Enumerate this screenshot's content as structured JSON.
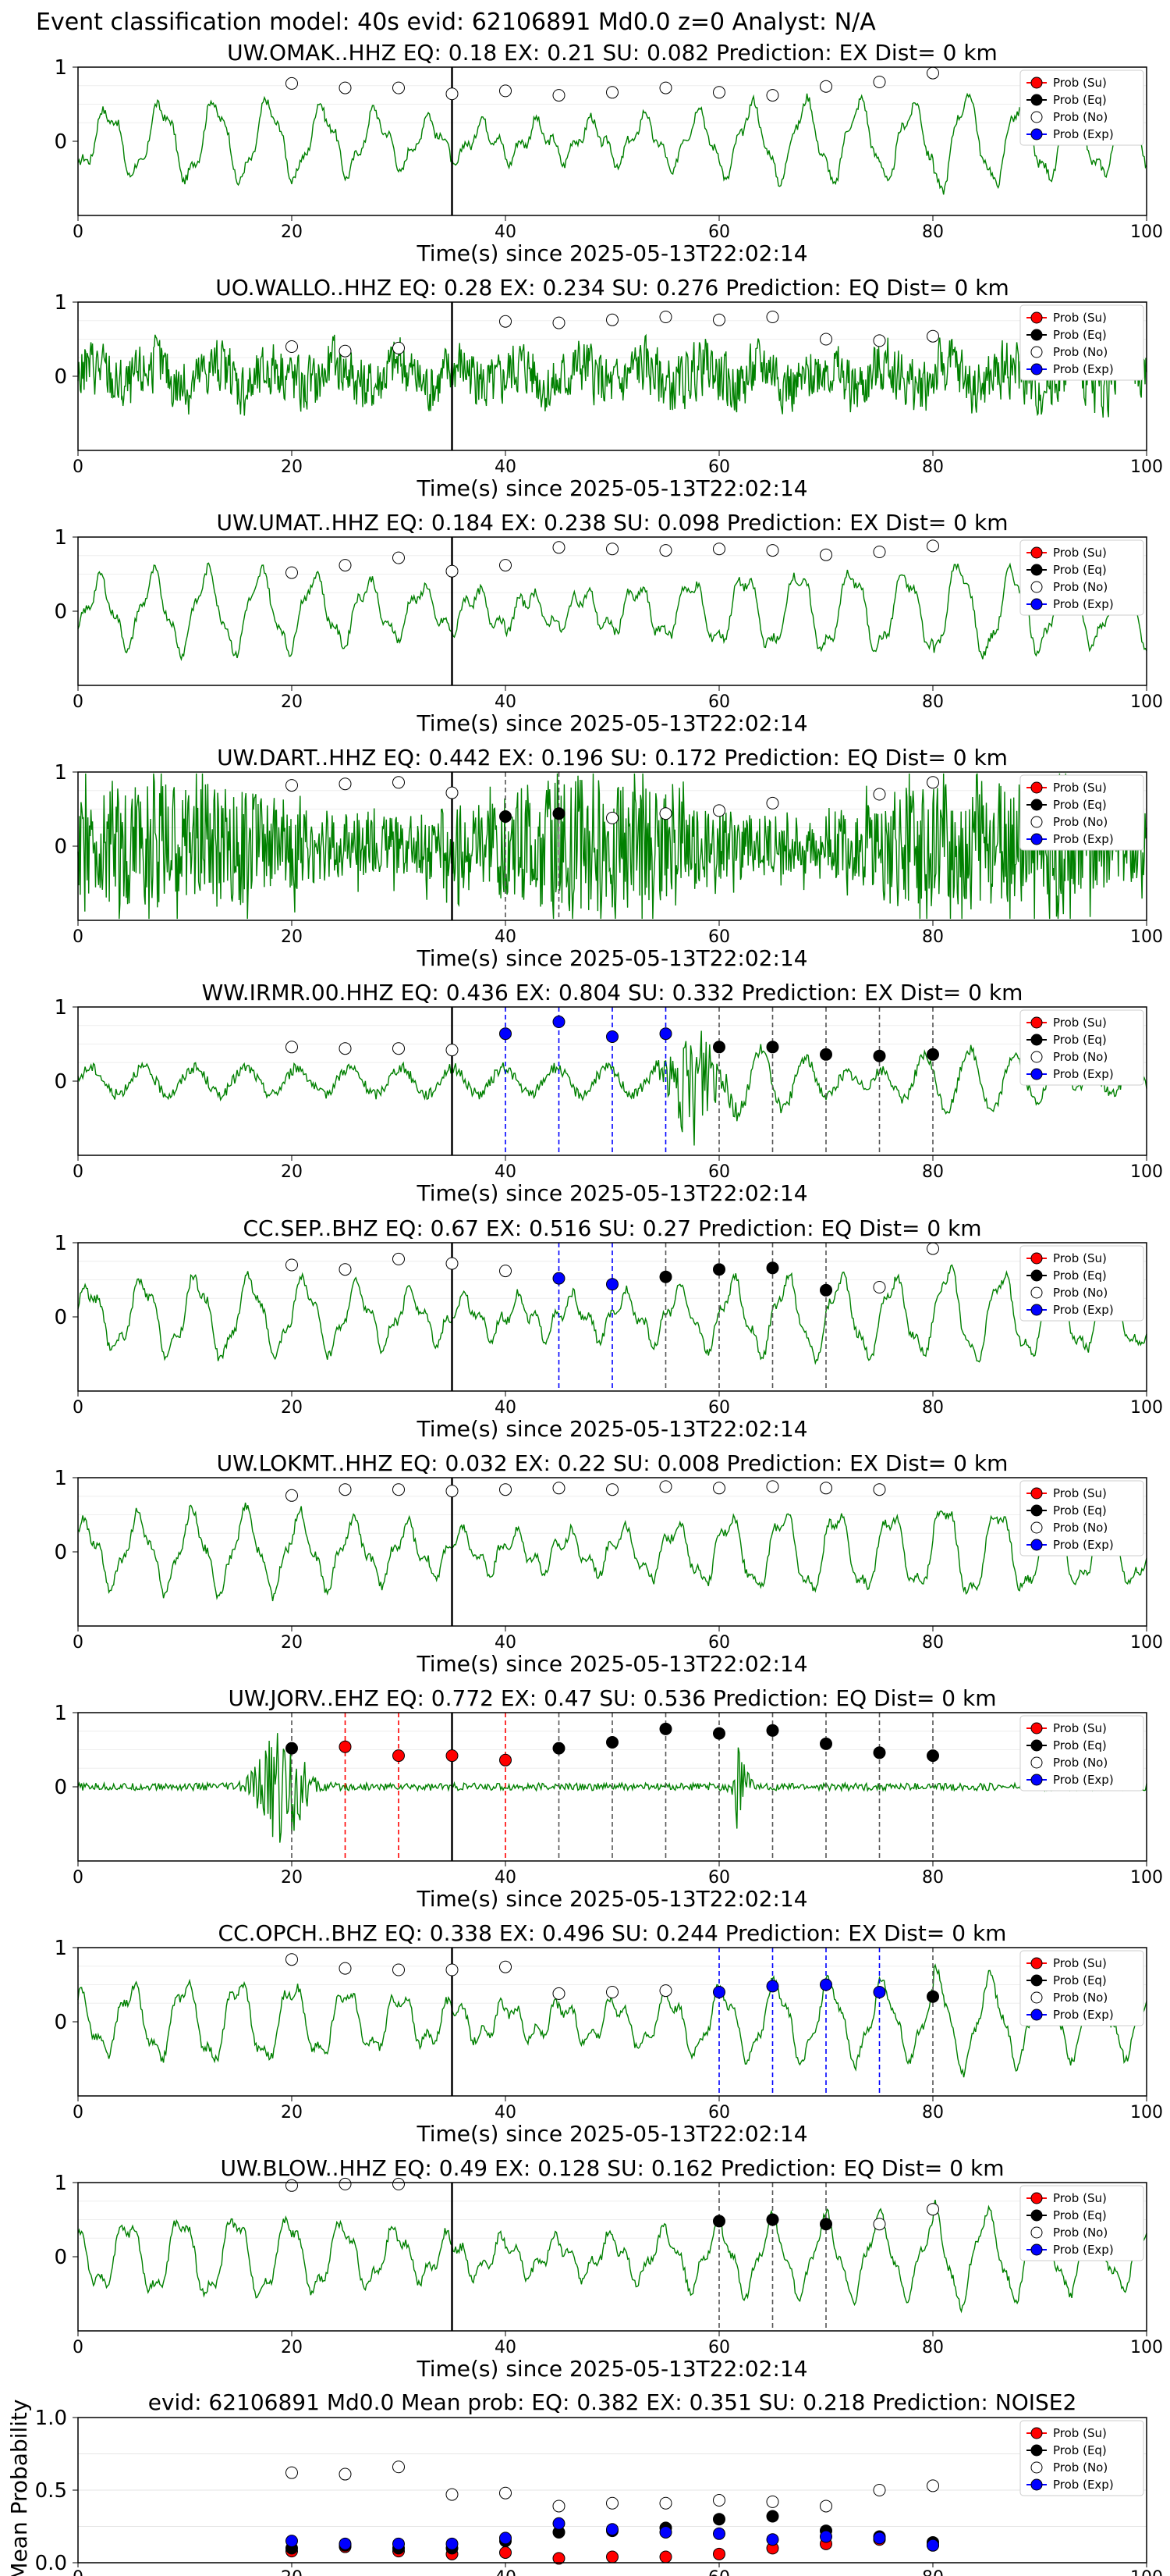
{
  "figure_title": "Event classification model: 40s evid: 62106891 Md0.0 z=0 Analyst: N/A",
  "colors": {
    "waveform": "#008000",
    "su": "#ff0000",
    "eq": "#000000",
    "no": "#ffffff",
    "exp": "#0000ff",
    "origin_line": "#000000"
  },
  "legend_labels": [
    "Prob (Su)",
    "Prob (Eq)",
    "Prob (No)",
    "Prob (Exp)"
  ],
  "chart_data": [
    {
      "type": "line",
      "title": "UW.OMAK..HHZ   EQ: 0.18   EX: 0.21   SU: 0.082   Prediction: EX    Dist= 0 km",
      "xlabel": "Time(s) since 2025-05-13T22:02:14",
      "xlim": [
        0,
        100
      ],
      "ylim": [
        -1,
        1
      ],
      "xticks": [
        0,
        20,
        40,
        60,
        80,
        100
      ],
      "yticks": [
        0,
        1
      ],
      "origin_time": 35,
      "legend": "top-right",
      "points": [
        [
          20,
          0.78,
          "no"
        ],
        [
          25,
          0.72,
          "no"
        ],
        [
          30,
          0.72,
          "no"
        ],
        [
          35,
          0.64,
          "no"
        ],
        [
          40,
          0.68,
          "no"
        ],
        [
          45,
          0.62,
          "no"
        ],
        [
          50,
          0.66,
          "no"
        ],
        [
          55,
          0.72,
          "no"
        ],
        [
          60,
          0.66,
          "no"
        ],
        [
          65,
          0.62,
          "no"
        ],
        [
          70,
          0.74,
          "no"
        ],
        [
          75,
          0.8,
          "no"
        ],
        [
          80,
          0.92,
          "no"
        ]
      ],
      "dashed": [],
      "signal": "smooth"
    },
    {
      "type": "line",
      "title": "UO.WALLO..HHZ   EQ: 0.28   EX: 0.234   SU: 0.276   Prediction: EQ    Dist= 0 km",
      "xlabel": "Time(s) since 2025-05-13T22:02:14",
      "xlim": [
        0,
        100
      ],
      "ylim": [
        -1,
        1
      ],
      "xticks": [
        0,
        20,
        40,
        60,
        80,
        100
      ],
      "yticks": [
        0,
        1
      ],
      "origin_time": 35,
      "legend": "top-right",
      "points": [
        [
          20,
          0.4,
          "no"
        ],
        [
          25,
          0.34,
          "no"
        ],
        [
          30,
          0.38,
          "no"
        ],
        [
          40,
          0.74,
          "no"
        ],
        [
          45,
          0.72,
          "no"
        ],
        [
          50,
          0.76,
          "no"
        ],
        [
          55,
          0.8,
          "no"
        ],
        [
          60,
          0.76,
          "no"
        ],
        [
          65,
          0.8,
          "no"
        ],
        [
          70,
          0.5,
          "no"
        ],
        [
          75,
          0.48,
          "no"
        ],
        [
          80,
          0.54,
          "no"
        ]
      ],
      "dashed": [],
      "signal": "noisy"
    },
    {
      "type": "line",
      "title": "UW.UMAT..HHZ   EQ: 0.184   EX: 0.238   SU: 0.098   Prediction: EX    Dist= 0 km",
      "xlabel": "Time(s) since 2025-05-13T22:02:14",
      "xlim": [
        0,
        100
      ],
      "ylim": [
        -1,
        1
      ],
      "xticks": [
        0,
        20,
        40,
        60,
        80,
        100
      ],
      "yticks": [
        0,
        1
      ],
      "origin_time": 35,
      "legend": "top-right",
      "points": [
        [
          20,
          0.52,
          "no"
        ],
        [
          25,
          0.62,
          "no"
        ],
        [
          30,
          0.72,
          "no"
        ],
        [
          35,
          0.54,
          "no"
        ],
        [
          40,
          0.62,
          "no"
        ],
        [
          45,
          0.86,
          "no"
        ],
        [
          50,
          0.84,
          "no"
        ],
        [
          55,
          0.82,
          "no"
        ],
        [
          60,
          0.84,
          "no"
        ],
        [
          65,
          0.82,
          "no"
        ],
        [
          70,
          0.76,
          "no"
        ],
        [
          75,
          0.8,
          "no"
        ],
        [
          80,
          0.88,
          "no"
        ]
      ],
      "dashed": [],
      "signal": "smooth"
    },
    {
      "type": "line",
      "title": "UW.DART..HHZ   EQ: 0.442   EX: 0.196   SU: 0.172   Prediction: EQ    Dist= 0 km",
      "xlabel": "Time(s) since 2025-05-13T22:02:14",
      "xlim": [
        0,
        100
      ],
      "ylim": [
        -1,
        1
      ],
      "xticks": [
        0,
        20,
        40,
        60,
        80,
        100
      ],
      "yticks": [
        0,
        1
      ],
      "origin_time": 35,
      "legend": "top-right",
      "points": [
        [
          20,
          0.82,
          "no"
        ],
        [
          25,
          0.84,
          "no"
        ],
        [
          30,
          0.86,
          "no"
        ],
        [
          35,
          0.72,
          "no"
        ],
        [
          40,
          0.4,
          "eq"
        ],
        [
          45,
          0.44,
          "eq"
        ],
        [
          50,
          0.38,
          "no"
        ],
        [
          55,
          0.44,
          "no"
        ],
        [
          60,
          0.48,
          "no"
        ],
        [
          65,
          0.58,
          "no"
        ],
        [
          75,
          0.7,
          "no"
        ],
        [
          80,
          0.86,
          "no"
        ]
      ],
      "dashed": [
        [
          40,
          "eq"
        ],
        [
          45,
          "eq"
        ]
      ],
      "signal": "dense"
    },
    {
      "type": "line",
      "title": "WW.IRMR.00.HHZ   EQ: 0.436   EX: 0.804   SU: 0.332   Prediction: EX    Dist= 0 km",
      "xlabel": "Time(s) since 2025-05-13T22:02:14",
      "xlim": [
        0,
        100
      ],
      "ylim": [
        -1,
        1
      ],
      "xticks": [
        0,
        20,
        40,
        60,
        80,
        100
      ],
      "yticks": [
        0,
        1
      ],
      "origin_time": 35,
      "legend": "top-right",
      "points": [
        [
          20,
          0.46,
          "no"
        ],
        [
          25,
          0.44,
          "no"
        ],
        [
          30,
          0.44,
          "no"
        ],
        [
          35,
          0.42,
          "no"
        ],
        [
          40,
          0.64,
          "exp"
        ],
        [
          45,
          0.8,
          "exp"
        ],
        [
          50,
          0.6,
          "exp"
        ],
        [
          55,
          0.64,
          "exp"
        ],
        [
          60,
          0.46,
          "eq"
        ],
        [
          65,
          0.46,
          "eq"
        ],
        [
          70,
          0.36,
          "eq"
        ],
        [
          75,
          0.34,
          "eq"
        ],
        [
          80,
          0.36,
          "eq"
        ]
      ],
      "dashed": [
        [
          40,
          "exp"
        ],
        [
          45,
          "exp"
        ],
        [
          50,
          "exp"
        ],
        [
          55,
          "exp"
        ],
        [
          60,
          "eq"
        ],
        [
          65,
          "eq"
        ],
        [
          70,
          "eq"
        ],
        [
          75,
          "eq"
        ],
        [
          80,
          "eq"
        ]
      ],
      "signal": "burst"
    },
    {
      "type": "line",
      "title": "CC.SEP..BHZ   EQ: 0.67   EX: 0.516   SU: 0.27   Prediction: EQ    Dist= 0 km",
      "xlabel": "Time(s) since 2025-05-13T22:02:14",
      "xlim": [
        0,
        100
      ],
      "ylim": [
        -1,
        1
      ],
      "xticks": [
        0,
        20,
        40,
        60,
        80,
        100
      ],
      "yticks": [
        0,
        1
      ],
      "origin_time": 35,
      "legend": "top-right",
      "points": [
        [
          20,
          0.7,
          "no"
        ],
        [
          25,
          0.64,
          "no"
        ],
        [
          30,
          0.78,
          "no"
        ],
        [
          35,
          0.72,
          "no"
        ],
        [
          40,
          0.62,
          "no"
        ],
        [
          45,
          0.52,
          "exp"
        ],
        [
          50,
          0.44,
          "exp"
        ],
        [
          55,
          0.54,
          "eq"
        ],
        [
          60,
          0.64,
          "eq"
        ],
        [
          65,
          0.66,
          "eq"
        ],
        [
          70,
          0.36,
          "eq"
        ],
        [
          75,
          0.4,
          "no"
        ],
        [
          80,
          0.92,
          "no"
        ]
      ],
      "dashed": [
        [
          45,
          "exp"
        ],
        [
          50,
          "exp"
        ],
        [
          55,
          "eq"
        ],
        [
          60,
          "eq"
        ],
        [
          65,
          "eq"
        ],
        [
          70,
          "eq"
        ]
      ],
      "signal": "smooth"
    },
    {
      "type": "line",
      "title": "UW.LOKMT..HHZ   EQ: 0.032   EX: 0.22   SU: 0.008   Prediction: EX    Dist= 0 km",
      "xlabel": "Time(s) since 2025-05-13T22:02:14",
      "xlim": [
        0,
        100
      ],
      "ylim": [
        -1,
        1
      ],
      "xticks": [
        0,
        20,
        40,
        60,
        80,
        100
      ],
      "yticks": [
        0,
        1
      ],
      "origin_time": 35,
      "legend": "top-right",
      "points": [
        [
          20,
          0.76,
          "no"
        ],
        [
          25,
          0.84,
          "no"
        ],
        [
          30,
          0.84,
          "no"
        ],
        [
          35,
          0.82,
          "no"
        ],
        [
          40,
          0.84,
          "no"
        ],
        [
          45,
          0.86,
          "no"
        ],
        [
          50,
          0.84,
          "no"
        ],
        [
          55,
          0.88,
          "no"
        ],
        [
          60,
          0.86,
          "no"
        ],
        [
          65,
          0.88,
          "no"
        ],
        [
          70,
          0.86,
          "no"
        ],
        [
          75,
          0.84,
          "no"
        ]
      ],
      "dashed": [],
      "signal": "smooth"
    },
    {
      "type": "line",
      "title": "UW.JORV..EHZ   EQ: 0.772   EX: 0.47   SU: 0.536   Prediction: EQ    Dist= 0 km",
      "xlabel": "Time(s) since 2025-05-13T22:02:14",
      "xlim": [
        0,
        100
      ],
      "ylim": [
        -1,
        1
      ],
      "xticks": [
        0,
        20,
        40,
        60,
        80,
        100
      ],
      "yticks": [
        0,
        1
      ],
      "origin_time": 35,
      "legend": "top-right",
      "points": [
        [
          20,
          0.52,
          "eq"
        ],
        [
          25,
          0.54,
          "su"
        ],
        [
          30,
          0.42,
          "su"
        ],
        [
          35,
          0.42,
          "su"
        ],
        [
          40,
          0.36,
          "su"
        ],
        [
          45,
          0.52,
          "eq"
        ],
        [
          50,
          0.6,
          "eq"
        ],
        [
          55,
          0.78,
          "eq"
        ],
        [
          60,
          0.72,
          "eq"
        ],
        [
          65,
          0.76,
          "eq"
        ],
        [
          70,
          0.58,
          "eq"
        ],
        [
          75,
          0.46,
          "eq"
        ],
        [
          80,
          0.42,
          "eq"
        ]
      ],
      "dashed": [
        [
          20,
          "eq"
        ],
        [
          25,
          "su"
        ],
        [
          30,
          "su"
        ],
        [
          40,
          "su"
        ],
        [
          45,
          "eq"
        ],
        [
          50,
          "eq"
        ],
        [
          55,
          "eq"
        ],
        [
          60,
          "eq"
        ],
        [
          65,
          "eq"
        ],
        [
          70,
          "eq"
        ],
        [
          75,
          "eq"
        ],
        [
          80,
          "eq"
        ]
      ],
      "signal": "quake"
    },
    {
      "type": "line",
      "title": "CC.OPCH..BHZ   EQ: 0.338   EX: 0.496   SU: 0.244   Prediction: EX    Dist= 0 km",
      "xlabel": "Time(s) since 2025-05-13T22:02:14",
      "xlim": [
        0,
        100
      ],
      "ylim": [
        -1,
        1
      ],
      "xticks": [
        0,
        20,
        40,
        60,
        80,
        100
      ],
      "yticks": [
        0,
        1
      ],
      "origin_time": 35,
      "legend": "top-right",
      "points": [
        [
          20,
          0.84,
          "no"
        ],
        [
          25,
          0.72,
          "no"
        ],
        [
          30,
          0.7,
          "no"
        ],
        [
          35,
          0.7,
          "no"
        ],
        [
          40,
          0.74,
          "no"
        ],
        [
          45,
          0.38,
          "no"
        ],
        [
          50,
          0.4,
          "no"
        ],
        [
          55,
          0.42,
          "no"
        ],
        [
          60,
          0.4,
          "exp"
        ],
        [
          65,
          0.48,
          "exp"
        ],
        [
          70,
          0.5,
          "exp"
        ],
        [
          75,
          0.4,
          "exp"
        ],
        [
          80,
          0.34,
          "eq"
        ]
      ],
      "dashed": [
        [
          60,
          "exp"
        ],
        [
          65,
          "exp"
        ],
        [
          70,
          "exp"
        ],
        [
          75,
          "exp"
        ],
        [
          80,
          "eq"
        ]
      ],
      "signal": "smooth"
    },
    {
      "type": "line",
      "title": "UW.BLOW..HHZ   EQ: 0.49   EX: 0.128   SU: 0.162   Prediction: EQ    Dist= 0 km",
      "xlabel": "Time(s) since 2025-05-13T22:02:14",
      "xlim": [
        0,
        100
      ],
      "ylim": [
        -1,
        1
      ],
      "xticks": [
        0,
        20,
        40,
        60,
        80,
        100
      ],
      "yticks": [
        0,
        1
      ],
      "origin_time": 35,
      "legend": "top-right",
      "points": [
        [
          20,
          0.96,
          "no"
        ],
        [
          25,
          0.98,
          "no"
        ],
        [
          30,
          0.98,
          "no"
        ],
        [
          60,
          0.48,
          "eq"
        ],
        [
          65,
          0.5,
          "eq"
        ],
        [
          70,
          0.44,
          "eq"
        ],
        [
          75,
          0.44,
          "no"
        ],
        [
          80,
          0.64,
          "no"
        ]
      ],
      "dashed": [
        [
          60,
          "eq"
        ],
        [
          65,
          "eq"
        ],
        [
          70,
          "eq"
        ]
      ],
      "signal": "smooth"
    },
    {
      "type": "scatter",
      "title": "evid: 62106891  Md0.0   Mean prob:   EQ: 0.382  EX: 0.351  SU: 0.218   Prediction: NOISE2",
      "xlabel": "",
      "ylabel": "Mean Probability",
      "xlim": [
        0,
        100
      ],
      "ylim": [
        0,
        1
      ],
      "xticks": [
        0,
        20,
        40,
        60,
        80,
        100
      ],
      "yticks": [
        0.0,
        0.5,
        1.0
      ],
      "legend": "top-right",
      "x": [
        20,
        25,
        30,
        35,
        40,
        45,
        50,
        55,
        60,
        65,
        70,
        75,
        80
      ],
      "series": [
        {
          "name": "Prob (Su)",
          "key": "su",
          "values": [
            0.08,
            0.11,
            0.08,
            0.06,
            0.07,
            0.03,
            0.04,
            0.04,
            0.06,
            0.1,
            0.13,
            0.16,
            0.12
          ]
        },
        {
          "name": "Prob (Eq)",
          "key": "eq",
          "values": [
            0.1,
            0.12,
            0.1,
            0.1,
            0.15,
            0.21,
            0.22,
            0.24,
            0.3,
            0.32,
            0.22,
            0.18,
            0.14
          ]
        },
        {
          "name": "Prob (No)",
          "key": "no",
          "values": [
            0.62,
            0.61,
            0.66,
            0.47,
            0.48,
            0.39,
            0.41,
            0.41,
            0.43,
            0.42,
            0.39,
            0.5,
            0.53
          ]
        },
        {
          "name": "Prob (Exp)",
          "key": "exp",
          "values": [
            0.15,
            0.13,
            0.13,
            0.13,
            0.17,
            0.27,
            0.23,
            0.21,
            0.2,
            0.16,
            0.18,
            0.17,
            0.12
          ]
        }
      ]
    }
  ]
}
